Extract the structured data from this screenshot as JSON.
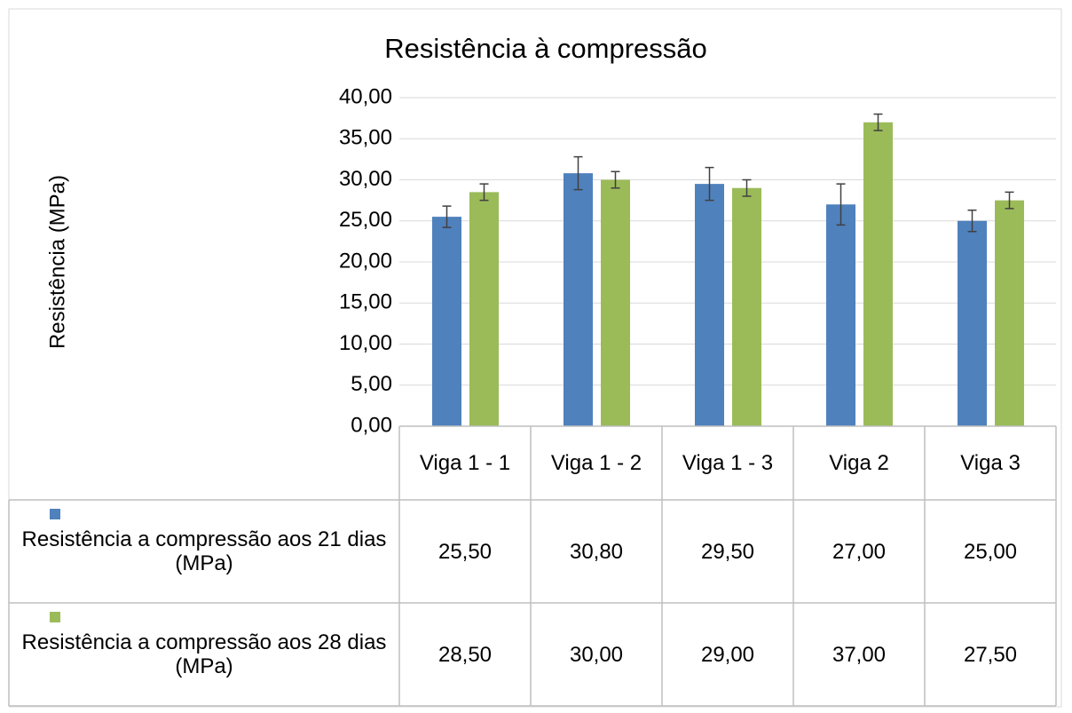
{
  "chart_data": {
    "type": "bar",
    "title": "Resistência à compressão",
    "y_label": "Resistência (MPa)",
    "categories": [
      "Viga 1 - 1",
      "Viga 1 - 2",
      "Viga 1 - 3",
      "Viga 2",
      "Viga 3"
    ],
    "series": [
      {
        "name": "Resistência a compressão  aos 21 dias (MPa)",
        "color": "#4f81bd",
        "values": [
          25.5,
          30.8,
          29.5,
          27.0,
          25.0
        ],
        "value_labels": [
          "25,50",
          "30,80",
          "29,50",
          "27,00",
          "25,00"
        ],
        "errors": [
          1.3,
          2.0,
          2.0,
          2.5,
          1.3
        ]
      },
      {
        "name": "Resistência a compressão aos 28 dias (MPa)",
        "color": "#9bbb59",
        "values": [
          28.5,
          30.0,
          29.0,
          37.0,
          27.5
        ],
        "value_labels": [
          "28,50",
          "30,00",
          "29,00",
          "37,00",
          "27,50"
        ],
        "errors": [
          1.0,
          1.0,
          1.0,
          1.0,
          1.0
        ]
      }
    ],
    "ylim": [
      0,
      40
    ],
    "yticks": [
      {
        "value": 0,
        "label": "0,00"
      },
      {
        "value": 5,
        "label": "5,00"
      },
      {
        "value": 10,
        "label": "10,00"
      },
      {
        "value": 15,
        "label": "15,00"
      },
      {
        "value": 20,
        "label": "20,00"
      },
      {
        "value": 25,
        "label": "25,00"
      },
      {
        "value": 30,
        "label": "30,00"
      },
      {
        "value": 35,
        "label": "35,00"
      },
      {
        "value": 40,
        "label": "40,00"
      }
    ],
    "grid": true
  }
}
